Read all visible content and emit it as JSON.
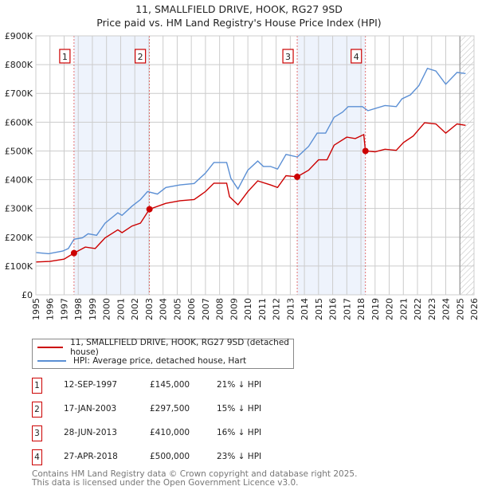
{
  "chart_data": {
    "type": "line",
    "title": "11, SMALLFIELD DRIVE, HOOK, RG27 9SD",
    "subtitle": "Price paid vs. HM Land Registry's House Price Index (HPI)",
    "xlabel": "",
    "ylabel": "",
    "xlim": [
      1995,
      2026
    ],
    "ylim": [
      0,
      900000
    ],
    "x_ticks": [
      "1995",
      "1996",
      "1997",
      "1998",
      "1999",
      "2000",
      "2001",
      "2002",
      "2003",
      "2004",
      "2005",
      "2006",
      "2007",
      "2008",
      "2009",
      "2010",
      "2011",
      "2012",
      "2013",
      "2014",
      "2015",
      "2016",
      "2017",
      "2018",
      "2019",
      "2020",
      "2021",
      "2022",
      "2023",
      "2024",
      "2025",
      "2026"
    ],
    "y_ticks": [
      {
        "v": 0,
        "label": "£0"
      },
      {
        "v": 100000,
        "label": "£100K"
      },
      {
        "v": 200000,
        "label": "£200K"
      },
      {
        "v": 300000,
        "label": "£300K"
      },
      {
        "v": 400000,
        "label": "£400K"
      },
      {
        "v": 500000,
        "label": "£500K"
      },
      {
        "v": 600000,
        "label": "£600K"
      },
      {
        "v": 700000,
        "label": "£700K"
      },
      {
        "v": 800000,
        "label": "£800K"
      },
      {
        "v": 900000,
        "label": "£900K"
      }
    ],
    "grid": true,
    "data_end": 2025.0,
    "series": [
      {
        "name": "11, SMALLFIELD DRIVE, HOOK, RG27 9SD (detached house)",
        "color": "#cc0000",
        "x": [
          1995.0,
          1996.0,
          1997.0,
          1997.7,
          1998.5,
          1999.2,
          1999.9,
          2000.8,
          2001.1,
          2001.8,
          2002.4,
          2003.04,
          2004.2,
          2005.2,
          2006.2,
          2007.0,
          2007.6,
          2008.5,
          2008.7,
          2009.3,
          2010.0,
          2010.7,
          2011.6,
          2012.1,
          2012.7,
          2013.49,
          2014.3,
          2015.0,
          2015.6,
          2016.1,
          2017.0,
          2017.6,
          2018.2,
          2018.32,
          2019.0,
          2019.7,
          2020.5,
          2021.0,
          2021.7,
          2022.5,
          2023.3,
          2024.0,
          2024.8,
          2025.4
        ],
        "y": [
          114000,
          116000,
          124000,
          145000,
          166000,
          161000,
          198000,
          226000,
          216000,
          239000,
          249000,
          297500,
          318000,
          327000,
          331000,
          359000,
          388000,
          388000,
          341000,
          313000,
          359000,
          396000,
          382000,
          373000,
          414000,
          410000,
          433000,
          469000,
          469000,
          520000,
          548000,
          543000,
          557000,
          500000,
          497000,
          506000,
          502000,
          529000,
          552000,
          598000,
          594000,
          562000,
          594000,
          589000
        ]
      },
      {
        "name": "HPI: Average price, detached house, Hart",
        "color": "#5b8fd4",
        "x": [
          1995.0,
          1995.9,
          1996.9,
          1997.3,
          1997.7,
          1998.3,
          1998.7,
          1999.3,
          1999.9,
          2000.8,
          2001.1,
          2001.8,
          2002.4,
          2002.9,
          2003.6,
          2004.2,
          2005.2,
          2006.2,
          2007.0,
          2007.6,
          2008.5,
          2008.8,
          2009.3,
          2010.0,
          2010.7,
          2011.1,
          2011.6,
          2012.1,
          2012.7,
          2013.5,
          2014.3,
          2014.9,
          2015.5,
          2016.1,
          2016.7,
          2017.1,
          2018.1,
          2018.5,
          2019.7,
          2020.5,
          2020.9,
          2021.5,
          2022.1,
          2022.7,
          2023.3,
          2024.0,
          2024.8,
          2025.4
        ],
        "y": [
          147000,
          143000,
          152000,
          161000,
          193000,
          198000,
          212000,
          207000,
          249000,
          285000,
          276000,
          308000,
          331000,
          359000,
          350000,
          373000,
          382000,
          387000,
          423000,
          460000,
          460000,
          405000,
          368000,
          433000,
          465000,
          446000,
          446000,
          437000,
          488000,
          479000,
          516000,
          562000,
          562000,
          617000,
          635000,
          654000,
          654000,
          640000,
          658000,
          654000,
          681000,
          695000,
          727000,
          787000,
          778000,
          732000,
          773000,
          769000
        ]
      }
    ],
    "sales": [
      {
        "n": "1",
        "x": 1997.7,
        "date": "12-SEP-1997",
        "price_value": 145000,
        "price": "£145,000",
        "hpi": "21% ↓ HPI"
      },
      {
        "n": "2",
        "x": 2003.04,
        "date": "17-JAN-2003",
        "price_value": 297500,
        "price": "£297,500",
        "hpi": "15% ↓ HPI"
      },
      {
        "n": "3",
        "x": 2013.49,
        "date": "28-JUN-2013",
        "price_value": 410000,
        "price": "£410,000",
        "hpi": "16% ↓ HPI"
      },
      {
        "n": "4",
        "x": 2018.32,
        "date": "27-APR-2018",
        "price_value": 500000,
        "price": "£500,000",
        "hpi": "23% ↓ HPI"
      }
    ],
    "legend_position": "below"
  },
  "legend": {
    "property": "11, SMALLFIELD DRIVE, HOOK, RG27 9SD (detached house)",
    "hpi": "HPI: Average price, detached house, Hart"
  },
  "footer": {
    "line1": "Contains HM Land Registry data © Crown copyright and database right 2025.",
    "line2": "This data is licensed under the Open Government Licence v3.0."
  }
}
